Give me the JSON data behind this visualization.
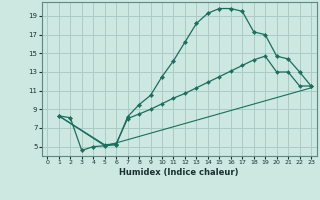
{
  "xlabel": "Humidex (Indice chaleur)",
  "background_color": "#cce8e0",
  "grid_color": "#aaccc4",
  "line_color": "#1a6e5e",
  "xlim": [
    -0.5,
    23.5
  ],
  "ylim": [
    4.0,
    20.5
  ],
  "xticks": [
    0,
    1,
    2,
    3,
    4,
    5,
    6,
    7,
    8,
    9,
    10,
    11,
    12,
    13,
    14,
    15,
    16,
    17,
    18,
    19,
    20,
    21,
    22,
    23
  ],
  "yticks": [
    5,
    7,
    9,
    11,
    13,
    15,
    17,
    19
  ],
  "curve1_x": [
    1,
    2,
    3,
    4,
    5,
    6,
    7,
    8,
    9,
    10,
    11,
    12,
    13,
    14,
    15,
    16,
    17,
    18,
    19,
    20,
    21,
    22,
    23
  ],
  "curve1_y": [
    8.3,
    8.1,
    4.6,
    5.0,
    5.1,
    5.2,
    8.2,
    9.5,
    10.5,
    12.5,
    14.2,
    16.2,
    18.2,
    19.3,
    19.8,
    19.8,
    19.5,
    17.3,
    17.0,
    14.7,
    14.4,
    13.0,
    11.5
  ],
  "curve2_x": [
    1,
    5,
    6,
    7,
    8,
    9,
    10,
    11,
    12,
    13,
    14,
    15,
    16,
    17,
    18,
    19,
    20,
    21,
    22,
    23
  ],
  "curve2_y": [
    8.3,
    5.2,
    5.3,
    8.0,
    8.5,
    9.0,
    9.6,
    10.2,
    10.7,
    11.3,
    11.9,
    12.5,
    13.1,
    13.7,
    14.3,
    14.7,
    13.0,
    13.0,
    11.5,
    11.5
  ],
  "curve3_x": [
    1,
    5,
    6,
    23
  ],
  "curve3_y": [
    8.3,
    5.1,
    5.4,
    11.3
  ]
}
